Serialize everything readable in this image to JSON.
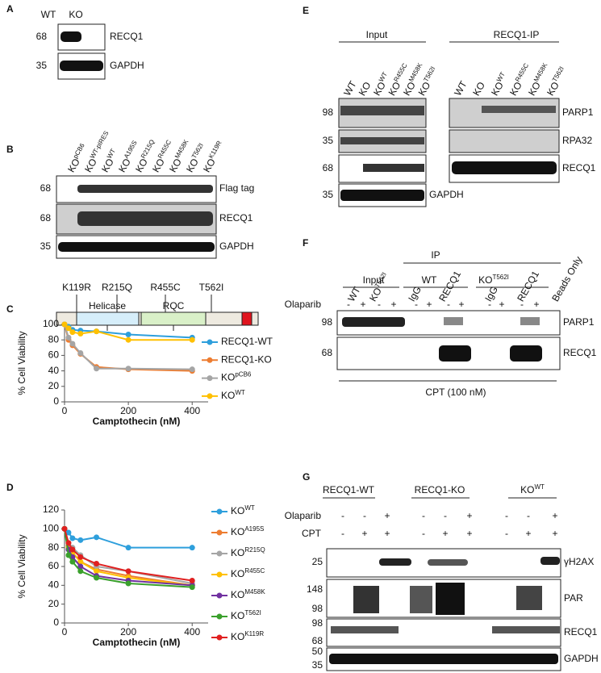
{
  "panels": {
    "A": {
      "letter": "A",
      "lanes": [
        "WT",
        "KO"
      ],
      "markers": [
        68,
        35
      ],
      "bands": [
        "RECQ1",
        "GAPDH"
      ]
    },
    "B": {
      "letter": "B",
      "lanes": [
        {
          "text": "KO",
          "sup": "pCB6"
        },
        {
          "text": "KO",
          "sup": "WT-pIRES"
        },
        {
          "text": "KO",
          "sup": "WT"
        },
        {
          "text": "KO",
          "sup": "A195S"
        },
        {
          "text": "KO",
          "sup": "R215Q"
        },
        {
          "text": "KO",
          "sup": "R455C"
        },
        {
          "text": "KO",
          "sup": "M458K"
        },
        {
          "text": "KO",
          "sup": "T562I"
        },
        {
          "text": "KO",
          "sup": "K119R"
        }
      ],
      "markers": [
        68,
        68,
        35
      ],
      "bands": [
        "Flag tag",
        "RECQ1",
        "GAPDH"
      ],
      "mutations": [
        "K119R",
        "R215Q",
        "R455C",
        "T562I"
      ],
      "domains": [
        "Helicase",
        "RQC"
      ]
    },
    "C": {
      "letter": "C"
    },
    "D": {
      "letter": "D"
    },
    "E": {
      "letter": "E",
      "groups": [
        "Input",
        "RECQ1-IP"
      ],
      "lanes": [
        "WT",
        "KO",
        {
          "text": "KO",
          "sup": "WT"
        },
        {
          "text": "KO",
          "sup": "R455C"
        },
        {
          "text": "KO",
          "sup": "M458K"
        },
        {
          "text": "KO",
          "sup": "T562I"
        },
        "WT",
        "KO",
        {
          "text": "KO",
          "sup": "WT"
        },
        {
          "text": "KO",
          "sup": "R455C"
        },
        {
          "text": "KO",
          "sup": "M458K"
        },
        {
          "text": "KO",
          "sup": "T562I"
        }
      ],
      "markers": [
        98,
        35,
        68,
        35
      ],
      "bands": [
        "PARP1",
        "RPA32",
        "RECQ1",
        "GAPDH"
      ]
    },
    "F": {
      "letter": "F",
      "ip": "IP",
      "groups": [
        "Input",
        "WT",
        {
          "text": "KO",
          "sup": "T562I"
        }
      ],
      "lanes": [
        "WT",
        {
          "text": "KO",
          "sup": "T562I"
        },
        "IgG",
        "RECQ1",
        "IgG",
        "RECQ1",
        "Beads Only"
      ],
      "treatment": "Olaparib",
      "signs": [
        "-",
        "+",
        "-",
        "+",
        "-",
        "+",
        "-",
        "+",
        "-",
        "+",
        "-",
        "+"
      ],
      "markers": [
        98,
        68
      ],
      "bands": [
        "PARP1",
        "RECQ1"
      ],
      "condition": "CPT (100 nM)"
    },
    "G": {
      "letter": "G",
      "groups": [
        "RECQ1-WT",
        "RECQ1-KO",
        {
          "text": "KO",
          "sup": "WT"
        }
      ],
      "treatments": [
        "Olaparib",
        "CPT"
      ],
      "signs": [
        [
          "-",
          "-",
          "+",
          "-",
          "-",
          "+",
          "-",
          "-",
          "+"
        ],
        [
          "-",
          "+",
          "+",
          "-",
          "+",
          "+",
          "-",
          "+",
          "+"
        ]
      ],
      "markers": [
        25,
        148,
        98,
        98,
        68,
        50,
        35
      ],
      "bands": [
        "γH2AX",
        "PAR",
        "RECQ1",
        "GAPDH"
      ]
    }
  },
  "chart_data": [
    {
      "type": "line",
      "x": [
        0,
        12.5,
        25,
        50,
        100,
        200,
        400
      ],
      "xlim": [
        0,
        450
      ],
      "xticks": [
        0,
        200,
        400
      ],
      "ylim": [
        0,
        100
      ],
      "yticks": [
        0,
        20,
        40,
        60,
        80,
        100
      ],
      "xlabel": "Camptothecin (nM)",
      "ylabel": "% Cell Viability",
      "series": [
        {
          "name": "RECQ1-WT",
          "color": "#2e9fdc",
          "values": [
            100,
            97,
            93,
            92,
            91,
            87,
            83
          ]
        },
        {
          "name": "RECQ1-KO",
          "color": "#ed7d31",
          "values": [
            100,
            80,
            73,
            62,
            45,
            42,
            40
          ]
        },
        {
          "name": {
            "text": "KO",
            "sup": "pCB6"
          },
          "color": "#a5a5a5",
          "values": [
            100,
            83,
            75,
            63,
            43,
            43,
            42
          ]
        },
        {
          "name": {
            "text": "KO",
            "sup": "WT"
          },
          "color": "#ffc000",
          "values": [
            100,
            95,
            90,
            88,
            91,
            80,
            80
          ]
        }
      ]
    },
    {
      "type": "line",
      "x": [
        0,
        12.5,
        25,
        50,
        100,
        200,
        400
      ],
      "xlim": [
        0,
        450
      ],
      "xticks": [
        0,
        200,
        400
      ],
      "ylim": [
        0,
        120
      ],
      "yticks": [
        0,
        20,
        40,
        60,
        80,
        100,
        120
      ],
      "xlabel": "Camptothecin (nM)",
      "ylabel": "% Cell Viability",
      "series": [
        {
          "name": {
            "text": "KO",
            "sup": "WT"
          },
          "color": "#2e9fdc",
          "values": [
            100,
            96,
            90,
            88,
            91,
            80,
            80
          ]
        },
        {
          "name": {
            "text": "KO",
            "sup": "A195S"
          },
          "color": "#ed7d31",
          "values": [
            100,
            82,
            75,
            65,
            57,
            50,
            40
          ]
        },
        {
          "name": {
            "text": "KO",
            "sup": "R215Q"
          },
          "color": "#a5a5a5",
          "values": [
            100,
            85,
            80,
            72,
            60,
            55,
            42
          ]
        },
        {
          "name": {
            "text": "KO",
            "sup": "R455C"
          },
          "color": "#ffc000",
          "values": [
            100,
            80,
            75,
            65,
            55,
            48,
            40
          ]
        },
        {
          "name": {
            "text": "KO",
            "sup": "M458K"
          },
          "color": "#7030a0",
          "values": [
            100,
            78,
            70,
            60,
            50,
            45,
            40
          ]
        },
        {
          "name": {
            "text": "KO",
            "sup": "T562I"
          },
          "color": "#3aa02c",
          "values": [
            100,
            72,
            65,
            55,
            48,
            42,
            38
          ]
        },
        {
          "name": {
            "text": "KO",
            "sup": "K119R"
          },
          "color": "#e02020",
          "values": [
            100,
            85,
            78,
            70,
            63,
            55,
            45
          ]
        }
      ]
    }
  ]
}
